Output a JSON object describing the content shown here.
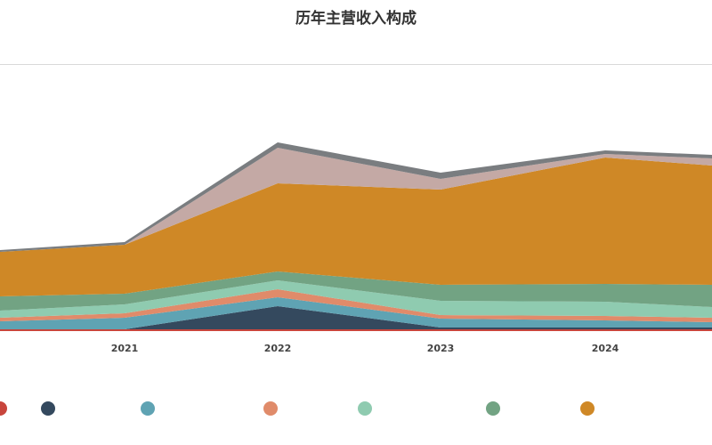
{
  "title": "历年主营收入构成",
  "source": "",
  "chart_data": {
    "type": "area",
    "title": "历年主营收入构成",
    "x": [
      "",
      "2021",
      "2022",
      "2023",
      "2024",
      ""
    ],
    "xlabel": "",
    "ylabel": "",
    "stacked": true,
    "legend_position": "bottom",
    "grid": false,
    "ylim": [
      0,
      250
    ],
    "series": [
      {
        "name": "",
        "color": "#c8453c",
        "values": [
          2,
          2,
          2,
          2,
          2,
          2
        ]
      },
      {
        "name": "",
        "color": "#34495e",
        "values": [
          0,
          0,
          26,
          2,
          2,
          2
        ]
      },
      {
        "name": "",
        "color": "#5fa3b3",
        "values": [
          9,
          13,
          10,
          10,
          8,
          6
        ]
      },
      {
        "name": "",
        "color": "#e08b6a",
        "values": [
          4,
          5,
          9,
          4,
          5,
          5
        ]
      },
      {
        "name": "",
        "color": "#8fcbb0",
        "values": [
          8,
          10,
          10,
          16,
          16,
          12
        ]
      },
      {
        "name": "",
        "color": "#72a383",
        "values": [
          16,
          12,
          10,
          18,
          20,
          25
        ]
      },
      {
        "name": "",
        "color": "#cf8826",
        "values": [
          50,
          55,
          99,
          107,
          142,
          134
        ]
      },
      {
        "name": "",
        "color": "#c4a9a5",
        "values": [
          0,
          0,
          40,
          12,
          4,
          8
        ]
      },
      {
        "name": "",
        "color": "#7a7d80",
        "values": [
          2,
          3,
          6,
          7,
          4,
          4
        ]
      }
    ]
  },
  "legend": [
    {
      "label": "",
      "color": "#c8453c"
    },
    {
      "label": "",
      "color": "#34495e"
    },
    {
      "label": "",
      "color": "#5fa3b3"
    },
    {
      "label": "",
      "color": "#e08b6a"
    },
    {
      "label": "",
      "color": "#8fcbb0"
    },
    {
      "label": "",
      "color": "#72a383"
    },
    {
      "label": "",
      "color": "#cf8826"
    }
  ]
}
